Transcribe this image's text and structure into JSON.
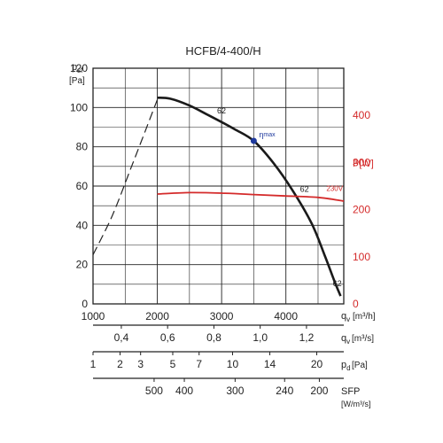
{
  "chart_data": {
    "type": "line",
    "title": "HCFB/4-400/H",
    "xlabel_main": "q",
    "xlabel_main_sub": "v",
    "xlabel_main_unit": "[m³/h]",
    "xlim": [
      1000,
      4900
    ],
    "ylim": [
      0,
      120
    ],
    "y_label_main": "p",
    "y_label_sub": "sf",
    "y_label_unit": "[Pa]",
    "y2_label": "P[W]",
    "y2lim": [
      0,
      500
    ],
    "colors": {
      "pressure": "#1a1a1a",
      "power": "#d42a2a",
      "point": "#1f3a9e"
    },
    "x_ticks": [
      1000,
      2000,
      3000,
      4000
    ],
    "y_ticks": [
      0,
      20,
      40,
      60,
      80,
      100,
      120
    ],
    "y2_ticks": [
      0,
      100,
      200,
      300,
      400
    ],
    "secondary_axes": [
      {
        "label": "q",
        "sub": "v",
        "unit": "[m³/s]",
        "ticks": [
          "0,4",
          "0,6",
          "0,8",
          "1,0",
          "1,2"
        ],
        "tick_at_qv": [
          1440,
          2160,
          2880,
          3600,
          4320
        ]
      },
      {
        "label": "p",
        "sub": "d",
        "unit": "[Pa]",
        "ticks": [
          "1",
          "2",
          "3",
          "5",
          "7",
          "10",
          "14",
          "20"
        ],
        "tick_at_qv": [
          1000,
          1420,
          1740,
          2240,
          2650,
          3170,
          3750,
          4480
        ]
      },
      {
        "label": "SFP",
        "unit": "[W/m³/s]",
        "ticks": [
          "500",
          "400",
          "300",
          "240",
          "200"
        ],
        "tick_at_qv": [
          1950,
          2420,
          3210,
          3980,
          4520
        ]
      }
    ],
    "series": [
      {
        "kind": "pressure-dashed",
        "x": [
          1000,
          1300,
          1600,
          1800,
          2000
        ],
        "y": [
          25,
          45,
          70,
          87,
          104
        ]
      },
      {
        "kind": "pressure",
        "x": [
          2000,
          2200,
          2500,
          2800,
          3200,
          3500,
          3800,
          4100,
          4400,
          4600,
          4750,
          4850
        ],
        "y": [
          105,
          104.5,
          101,
          96,
          89,
          83,
          72,
          58,
          41,
          25,
          12,
          4
        ]
      },
      {
        "kind": "power",
        "axis": "y2",
        "x": [
          2000,
          2500,
          3000,
          3500,
          4000,
          4500,
          4900
        ],
        "y": [
          233,
          236,
          235,
          232,
          229,
          226,
          218
        ]
      }
    ],
    "annotations": {
      "curve_label_1": "62",
      "curve_label_2": "62",
      "curve_label_3": "62",
      "eta": "η",
      "eta_sub": "max",
      "power_label": "230V",
      "eta_point": {
        "x": 3500,
        "y": 83
      }
    }
  }
}
